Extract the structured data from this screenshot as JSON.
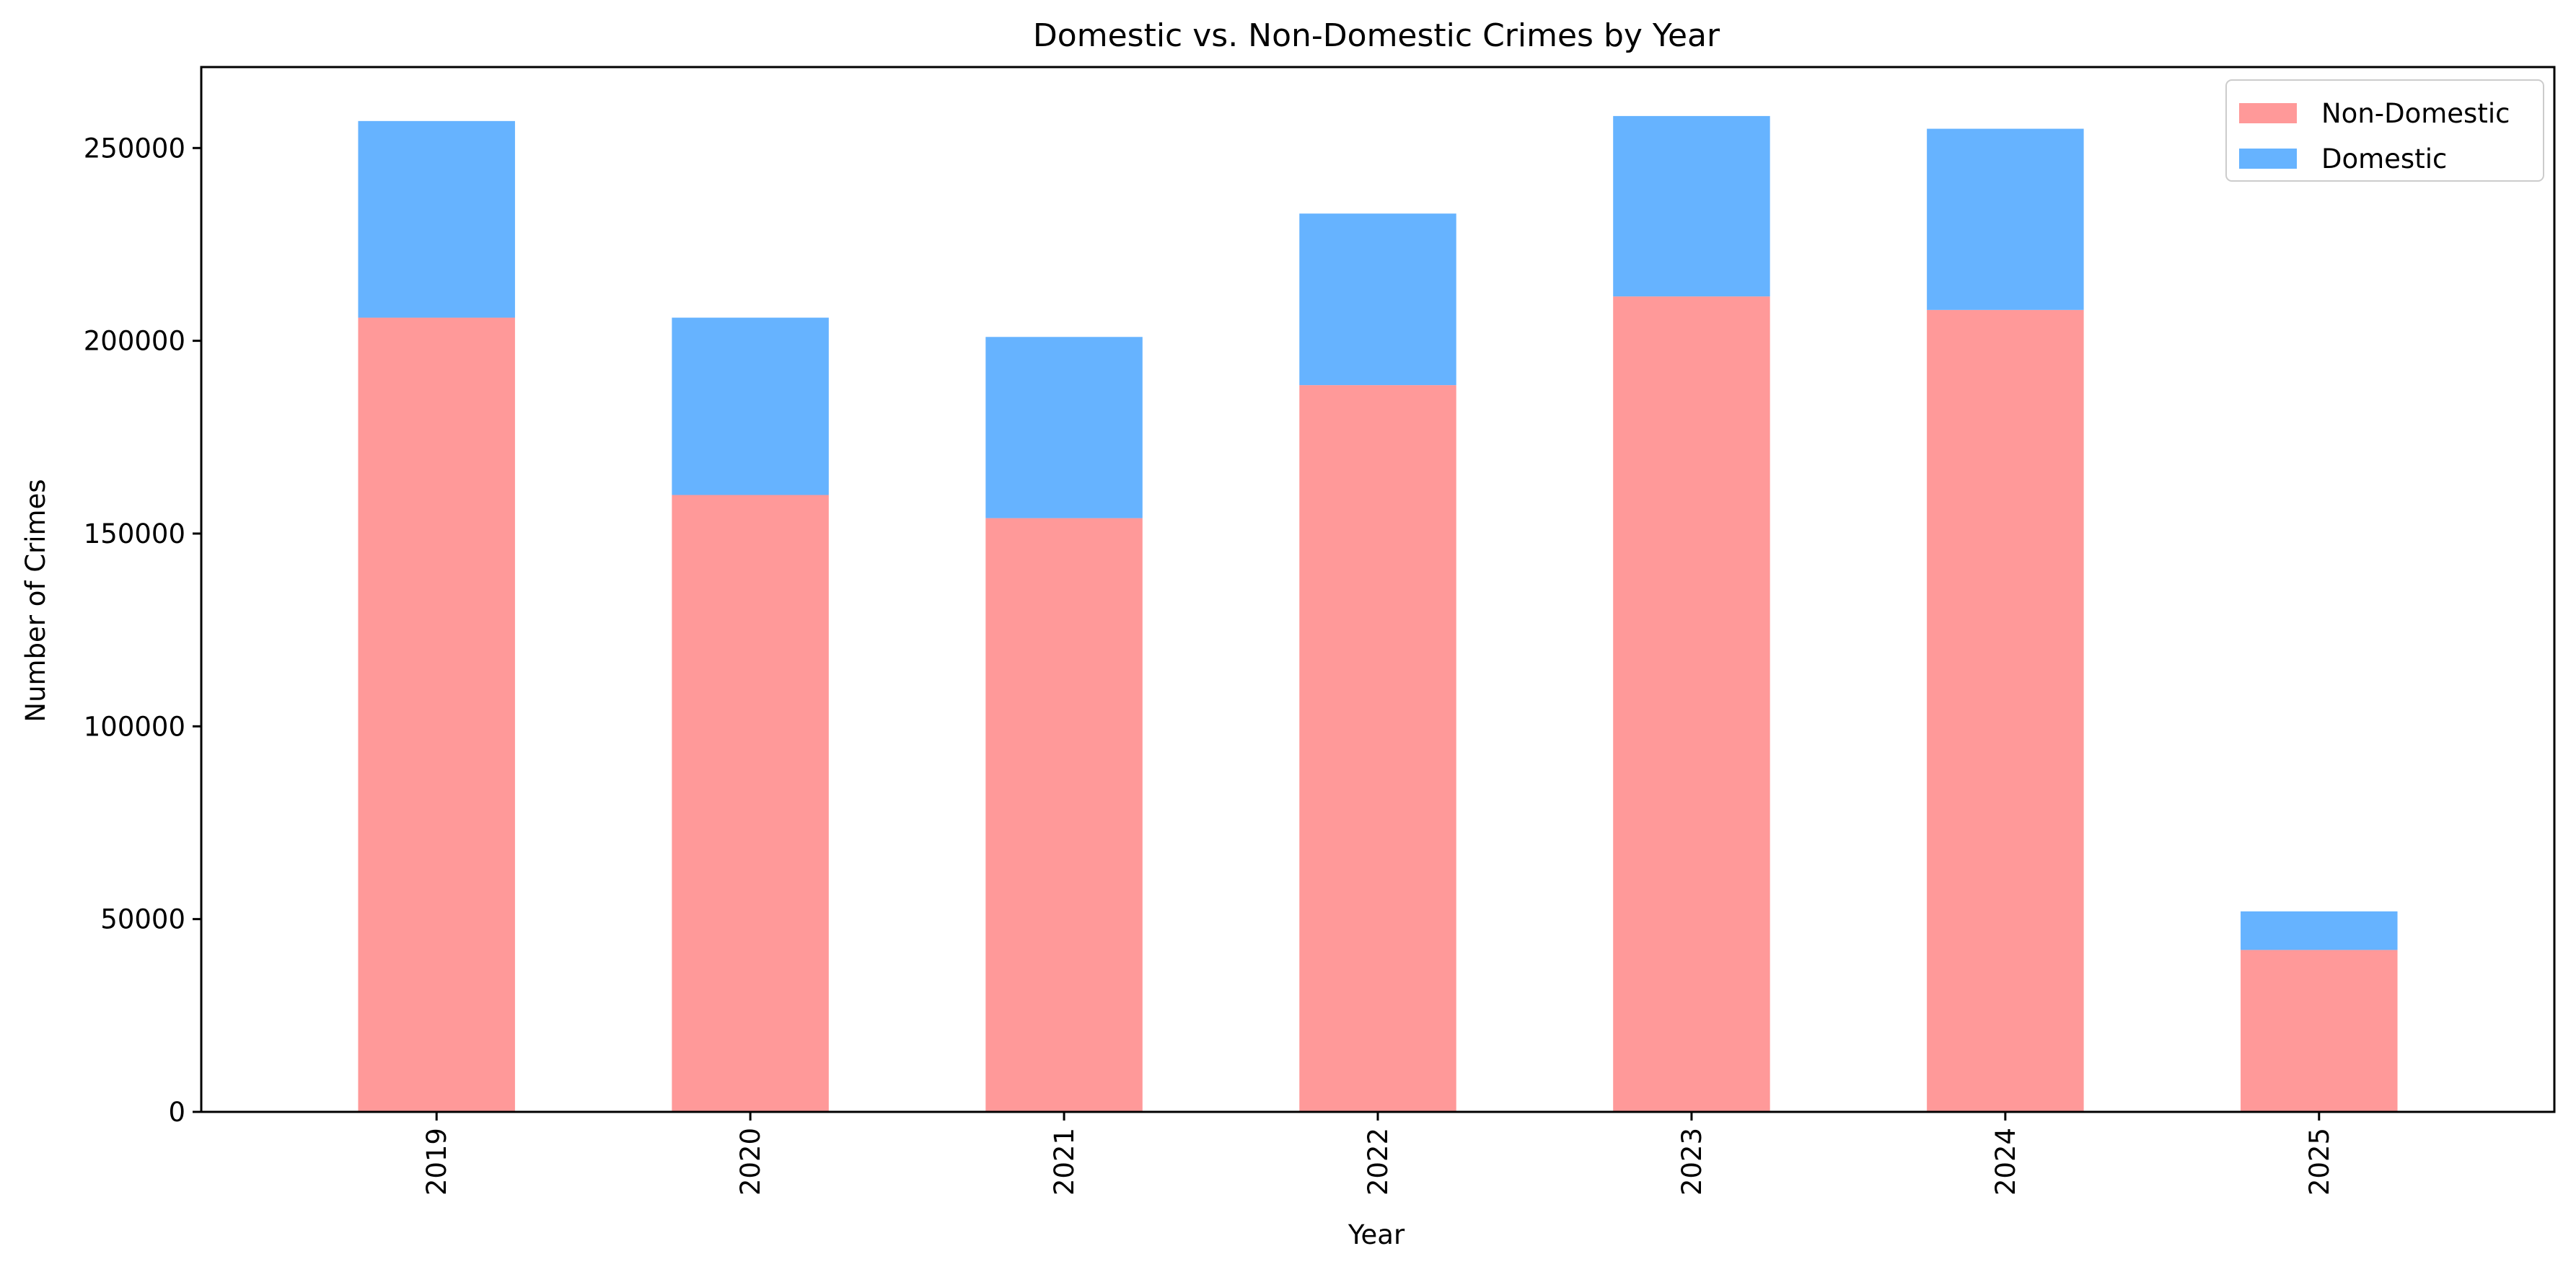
{
  "chart_data": {
    "type": "bar",
    "stacked": true,
    "title": "Domestic vs. Non-Domestic Crimes by Year",
    "xlabel": "Year",
    "ylabel": "Number of Crimes",
    "categories": [
      "2019",
      "2020",
      "2021",
      "2022",
      "2023",
      "2024",
      "2025"
    ],
    "series": [
      {
        "name": "Non-Domestic",
        "color": "#ff9999",
        "values": [
          206000,
          160000,
          154000,
          188500,
          211500,
          208000,
          42000
        ]
      },
      {
        "name": "Domestic",
        "color": "#66b3ff",
        "values": [
          51000,
          46000,
          47000,
          44500,
          46800,
          47000,
          10000
        ]
      }
    ],
    "ylim": [
      0,
      271000
    ],
    "yticks": [
      0,
      50000,
      100000,
      150000,
      200000,
      250000
    ],
    "legend": "top-right",
    "grid": false
  }
}
